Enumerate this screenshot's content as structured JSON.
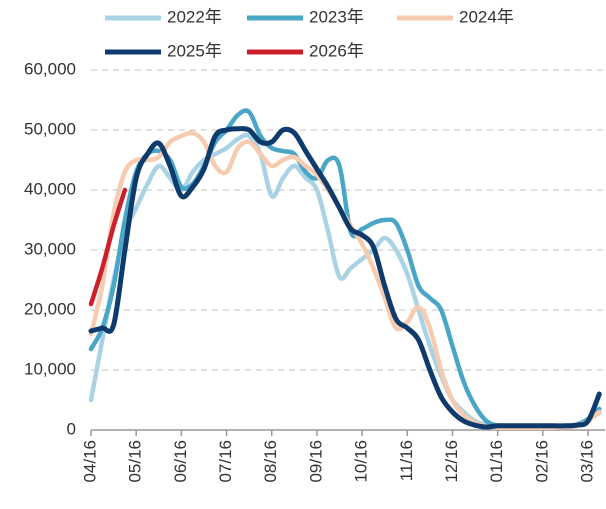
{
  "chart_data": {
    "type": "line",
    "categories": [
      "04/16",
      null,
      null,
      null,
      "05/16",
      null,
      null,
      null,
      "06/16",
      null,
      null,
      null,
      "07/16",
      null,
      null,
      null,
      "08/16",
      null,
      null,
      null,
      "09/16",
      null,
      null,
      null,
      "10/16",
      null,
      null,
      null,
      "11/16",
      null,
      null,
      null,
      "12/16",
      null,
      null,
      null,
      "01/16",
      null,
      null,
      null,
      "02/16",
      null,
      null,
      null,
      "03/16",
      null
    ],
    "series": [
      {
        "name": "2022年",
        "color": "#a9d3e5",
        "values": [
          5000,
          15000,
          25000,
          33000,
          37000,
          41000,
          44000,
          42000,
          40000,
          43000,
          45000,
          46000,
          47000,
          48500,
          49000,
          46000,
          39000,
          42000,
          44000,
          42000,
          40000,
          33000,
          25500,
          27000,
          28500,
          30000,
          32000,
          30000,
          26000,
          20000,
          14000,
          9000,
          5000,
          3000,
          1500,
          800,
          500,
          500,
          500,
          500,
          500,
          600,
          700,
          1000,
          1800,
          2800
        ]
      },
      {
        "name": "2023年",
        "color": "#4aa6c6",
        "values": [
          13500,
          17000,
          24000,
          35000,
          43000,
          46000,
          46500,
          45000,
          40500,
          41000,
          44000,
          48000,
          50000,
          52500,
          53000,
          49000,
          47000,
          46500,
          46000,
          43000,
          42000,
          45000,
          44000,
          33000,
          33500,
          34500,
          35000,
          34500,
          30000,
          24000,
          22000,
          20000,
          14000,
          8000,
          4000,
          1500,
          700,
          500,
          500,
          500,
          500,
          500,
          500,
          800,
          1800,
          3500
        ]
      },
      {
        "name": "2024年",
        "color": "#f7cbb0",
        "values": [
          16000,
          24000,
          36000,
          43000,
          45000,
          45000,
          45500,
          48000,
          49000,
          49500,
          48000,
          44000,
          43000,
          47000,
          48000,
          46000,
          44000,
          45000,
          45500,
          44000,
          42500,
          40000,
          37000,
          34000,
          31000,
          27000,
          22000,
          17000,
          18000,
          20500,
          17000,
          10000,
          5000,
          2500,
          1200,
          600,
          400,
          400,
          400,
          400,
          400,
          400,
          500,
          700,
          1500,
          3000
        ]
      },
      {
        "name": "2025年",
        "color": "#0e3a6c",
        "values": [
          16500,
          17000,
          17500,
          30000,
          42000,
          46000,
          47800,
          44000,
          39000,
          40500,
          43500,
          49000,
          50000,
          50200,
          50000,
          48000,
          48000,
          50000,
          49500,
          46500,
          43500,
          40500,
          37000,
          33500,
          32500,
          30500,
          24000,
          18500,
          17000,
          15000,
          10000,
          5500,
          3000,
          1500,
          800,
          500,
          700,
          700,
          700,
          700,
          700,
          700,
          700,
          800,
          1500,
          6000
        ]
      },
      {
        "name": "2026年",
        "color": "#cc1f2c",
        "values": [
          21000,
          27000,
          34000,
          40000,
          null,
          null,
          null,
          null,
          null,
          null,
          null,
          null,
          null,
          null,
          null,
          null,
          null,
          null,
          null,
          null,
          null,
          null,
          null,
          null,
          null,
          null,
          null,
          null,
          null,
          null,
          null,
          null,
          null,
          null,
          null,
          null,
          null,
          null,
          null,
          null,
          null,
          null,
          null,
          null,
          null,
          null
        ]
      }
    ],
    "ylim": [
      0,
      60000
    ],
    "yticks": [
      0,
      {
        "value": 10000,
        "label": "10,000"
      },
      {
        "value": 20000,
        "label": "20,000"
      },
      {
        "value": 30000,
        "label": "30,000"
      },
      {
        "value": 40000,
        "label": "40,000"
      },
      {
        "value": 50000,
        "label": "50,000"
      },
      {
        "value": 60000,
        "label": "60,000"
      }
    ],
    "grid": true,
    "legend": "top"
  }
}
